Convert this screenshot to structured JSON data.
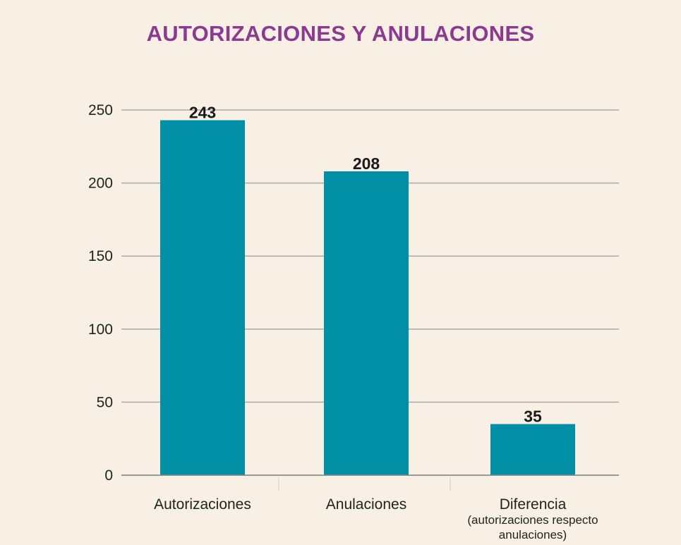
{
  "chart_data": {
    "type": "bar",
    "title": "AUTORIZACIONES Y ANULACIONES",
    "categories": [
      "Autorizaciones",
      "Anulaciones",
      "Diferencia"
    ],
    "category_sublabels": [
      "",
      "",
      "(autorizaciones respecto anulaciones)"
    ],
    "values": [
      243,
      208,
      35
    ],
    "value_labels": [
      "243",
      "208",
      "35"
    ],
    "yticks": [
      "0",
      "50",
      "100",
      "150",
      "200",
      "250"
    ],
    "ylim": [
      0,
      250
    ],
    "xlabel": "",
    "ylabel": "",
    "grid": true,
    "colors": {
      "bar": "#008fa4",
      "grid": "#aaaaaa",
      "title": "#8b3a8f",
      "background": "#f8f0e5"
    }
  }
}
